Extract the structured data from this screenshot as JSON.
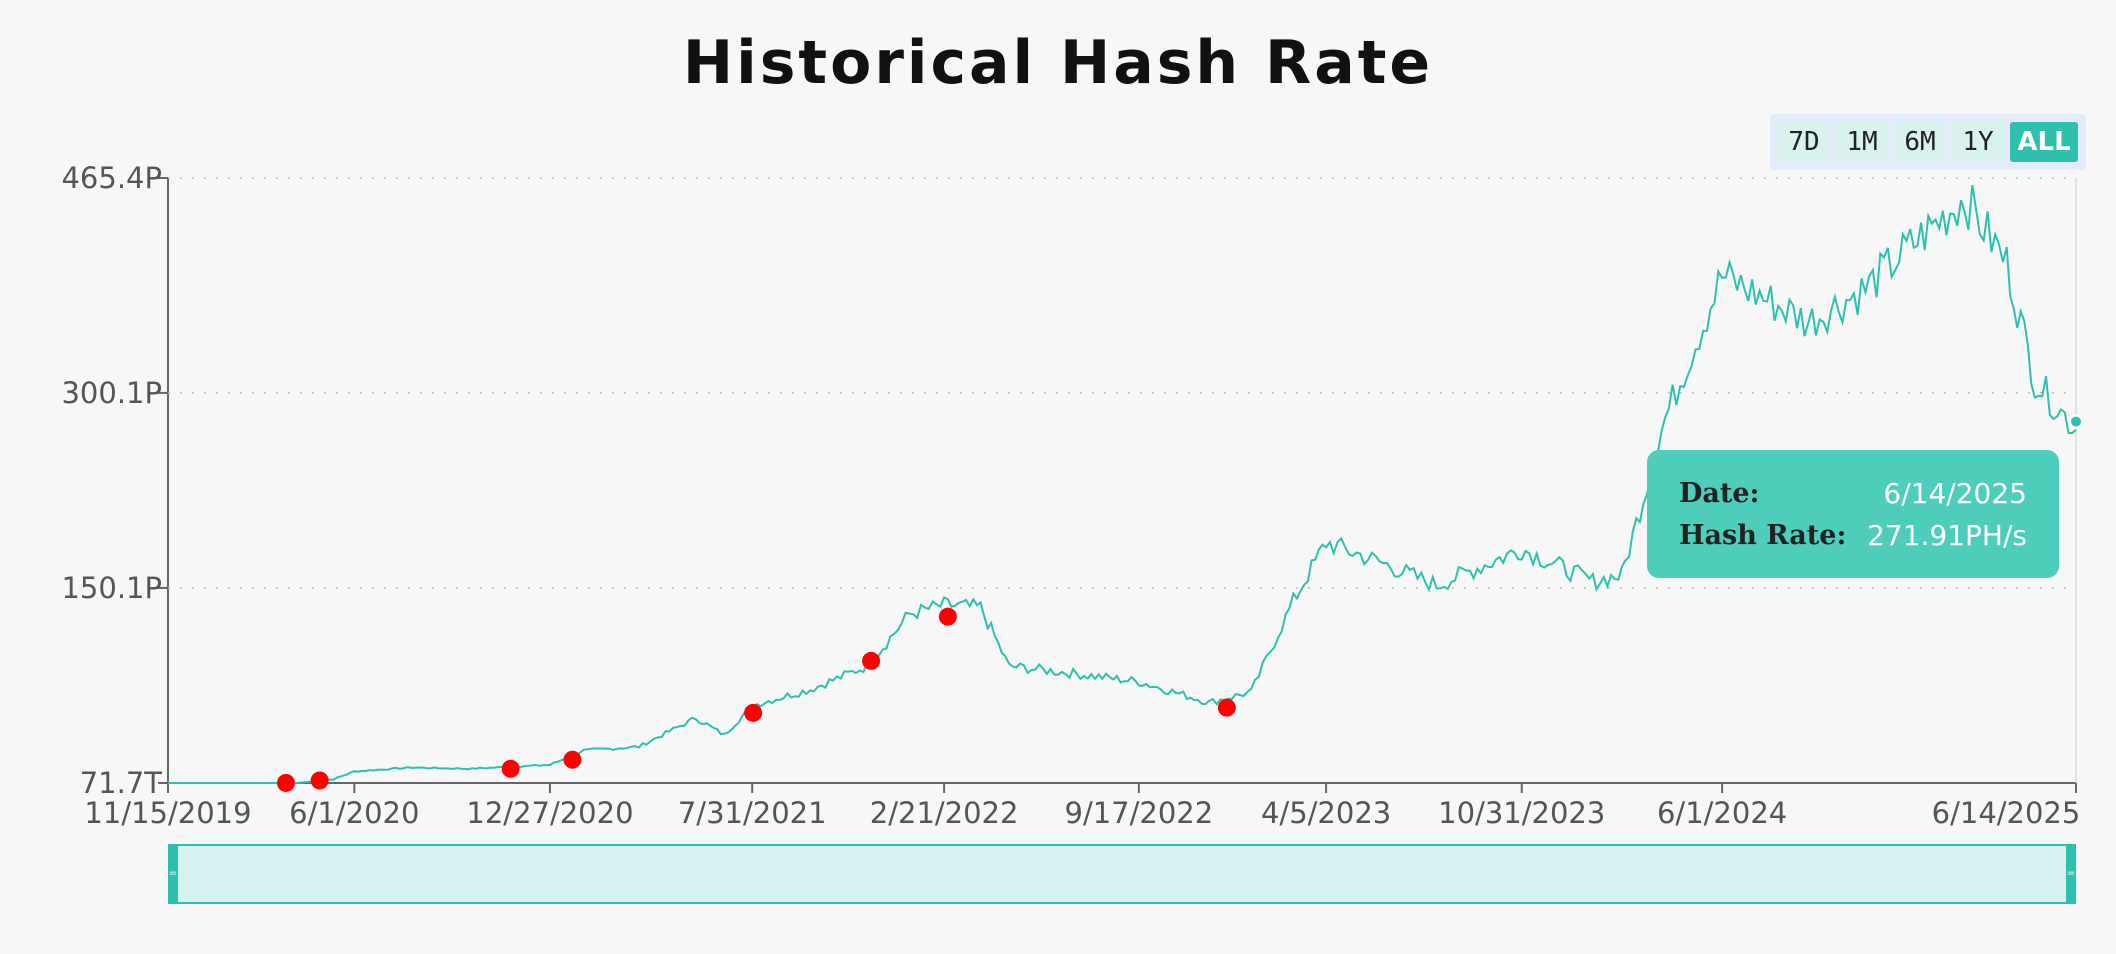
{
  "title": "Historical Hash Rate",
  "range_buttons": [
    {
      "label": "7D",
      "active": false
    },
    {
      "label": "1M",
      "active": false
    },
    {
      "label": "6M",
      "active": false
    },
    {
      "label": "1Y",
      "active": false
    },
    {
      "label": "ALL",
      "active": true
    }
  ],
  "colors": {
    "line": "#2ec0ae",
    "markers": "#ff0000",
    "tooltip_bg": "#4ecdbd",
    "active_button": "#2ec0ae",
    "zoom_fill": "#d4f3f0"
  },
  "tooltip": {
    "date_label": "Date:",
    "date_value": "6/14/2025",
    "rate_label": "Hash Rate:",
    "rate_value": "271.91PH/s"
  },
  "chart_data": {
    "type": "line",
    "title": "Historical Hash Rate",
    "xlabel": "",
    "ylabel": "",
    "x_tick_labels": [
      "11/15/2019",
      "6/1/2020",
      "12/27/2020",
      "7/31/2021",
      "2/21/2022",
      "9/17/2022",
      "4/5/2023",
      "10/31/2023",
      "6/1/2024",
      "6/14/2025"
    ],
    "y_tick_labels": [
      "71.7T",
      "150.1P",
      "300.1P",
      "465.4P"
    ],
    "y_tick_values_ph": [
      0.0717,
      150.1,
      300.1,
      465.4
    ],
    "ylim": [
      0.0717,
      465.4
    ],
    "xlim": [
      "2019-11-15",
      "2025-06-14"
    ],
    "grid": "horizontal-dotted",
    "series": [
      {
        "unit": "PH/s",
        "points": [
          [
            "2019-11-15",
            0.07
          ],
          [
            "2020-04-01",
            0.07
          ],
          [
            "2020-05-10",
            3
          ],
          [
            "2020-06-01",
            9
          ],
          [
            "2020-08-01",
            12
          ],
          [
            "2020-10-01",
            11
          ],
          [
            "2020-12-27",
            14
          ],
          [
            "2021-02-01",
            25
          ],
          [
            "2021-04-01",
            28
          ],
          [
            "2021-06-01",
            50
          ],
          [
            "2021-07-01",
            37
          ],
          [
            "2021-08-01",
            60
          ],
          [
            "2021-10-01",
            72
          ],
          [
            "2021-12-01",
            90
          ],
          [
            "2022-01-15",
            130
          ],
          [
            "2022-02-21",
            137
          ],
          [
            "2022-04-01",
            135
          ],
          [
            "2022-05-01",
            90
          ],
          [
            "2022-07-01",
            85
          ],
          [
            "2022-09-17",
            78
          ],
          [
            "2022-12-01",
            62
          ],
          [
            "2023-01-15",
            70
          ],
          [
            "2023-03-01",
            140
          ],
          [
            "2023-04-05",
            185
          ],
          [
            "2023-06-01",
            170
          ],
          [
            "2023-08-01",
            152
          ],
          [
            "2023-10-31",
            180
          ],
          [
            "2024-01-15",
            155
          ],
          [
            "2024-02-15",
            160
          ],
          [
            "2024-04-01",
            280
          ],
          [
            "2024-06-01",
            390
          ],
          [
            "2024-09-01",
            355
          ],
          [
            "2024-11-01",
            380
          ],
          [
            "2024-12-15",
            410
          ],
          [
            "2025-02-15",
            450
          ],
          [
            "2025-04-01",
            400
          ],
          [
            "2025-05-01",
            310
          ],
          [
            "2025-06-14",
            271.91
          ]
        ]
      }
    ],
    "markers": [
      {
        "date": "2020-03-20",
        "value": 0.1
      },
      {
        "date": "2020-04-25",
        "value": 2
      },
      {
        "date": "2020-11-15",
        "value": 11
      },
      {
        "date": "2021-01-20",
        "value": 18
      },
      {
        "date": "2021-08-01",
        "value": 54
      },
      {
        "date": "2021-12-05",
        "value": 94
      },
      {
        "date": "2022-02-25",
        "value": 128
      },
      {
        "date": "2022-12-20",
        "value": 58
      }
    ],
    "highlight": {
      "date": "2025-06-14",
      "value": 271.91
    }
  }
}
